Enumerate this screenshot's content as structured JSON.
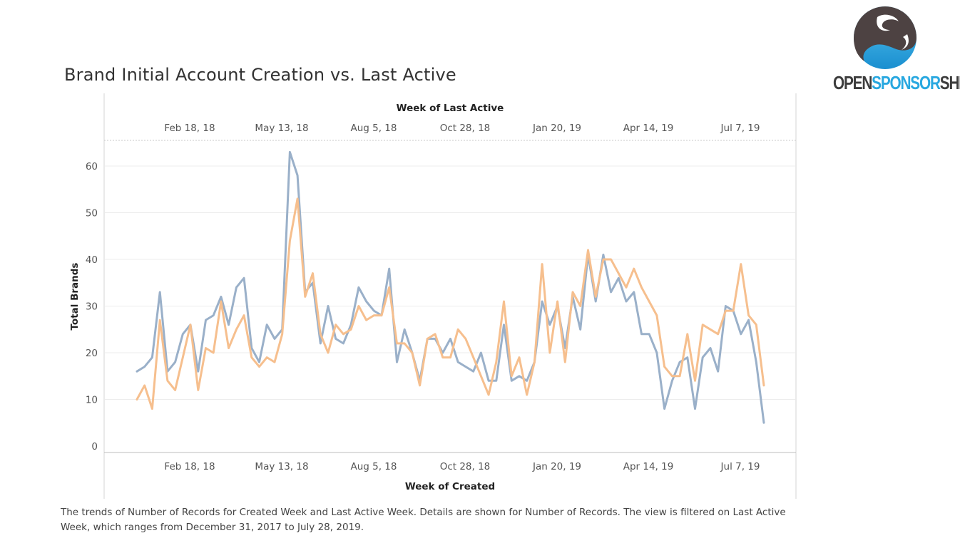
{
  "chart_data": {
    "type": "line",
    "title": "Brand Initial Account Creation vs. Last Active",
    "top_axis_title": "Week of Last Active",
    "xlabel": "Week of Created",
    "ylabel": "Total Brands",
    "x_tick_labels": [
      "Feb 18, 18",
      "May 13, 18",
      "Aug 5, 18",
      "Oct 28, 18",
      "Jan 20, 19",
      "Apr 14, 19",
      "Jul 7, 19"
    ],
    "y_ticks": [
      0,
      10,
      20,
      30,
      40,
      50,
      60
    ],
    "ylim": [
      0,
      66
    ],
    "x_start": "2018-01-06",
    "x_step_days": 7,
    "grid": "horizontal",
    "legend": "none",
    "series": [
      {
        "color": "#9ab0c9",
        "values": [
          16,
          17,
          19,
          33,
          16,
          18,
          24,
          26,
          16,
          27,
          28,
          32,
          26,
          34,
          36,
          21,
          18,
          26,
          23,
          25,
          63,
          58,
          33,
          35,
          22,
          30,
          23,
          22,
          26,
          34,
          31,
          29,
          28,
          38,
          18,
          25,
          20,
          14,
          23,
          23,
          20,
          23,
          18,
          17,
          16,
          20,
          14,
          14,
          26,
          14,
          15,
          14,
          18,
          31,
          26,
          30,
          21,
          32,
          25,
          41,
          31,
          41,
          33,
          36,
          31,
          33,
          24,
          24,
          20,
          8,
          14,
          18,
          19,
          8,
          19,
          21,
          16,
          30,
          29,
          24,
          27,
          18,
          5
        ]
      },
      {
        "color": "#f6bf8e",
        "values": [
          10,
          13,
          8,
          27,
          14,
          12,
          19,
          26,
          12,
          21,
          20,
          31,
          21,
          25,
          28,
          19,
          17,
          19,
          18,
          24,
          44,
          53,
          32,
          37,
          24,
          20,
          26,
          24,
          25,
          30,
          27,
          28,
          28,
          34,
          22,
          22,
          20,
          13,
          23,
          24,
          19,
          19,
          25,
          23,
          19,
          15,
          11,
          18,
          31,
          15,
          19,
          11,
          18,
          39,
          20,
          31,
          18,
          33,
          30,
          42,
          32,
          40,
          40,
          37,
          34,
          38,
          34,
          31,
          28,
          17,
          15,
          15,
          24,
          14,
          26,
          25,
          24,
          29,
          29,
          39,
          28,
          26,
          13
        ]
      }
    ]
  },
  "caption": "The trends of Number of Records for Created Week and Last Active Week.  Details are shown for Number of Records. The view is filtered on Last Active Week, which ranges from December 31, 2017 to July 28, 2019.",
  "logo": {
    "text_dark_1": "OPEN",
    "text_blue": "SPONSOR",
    "text_dark_2": "SHIP",
    "colors": {
      "dark": "#3d3d3d",
      "blue": "#29a8e0"
    }
  }
}
